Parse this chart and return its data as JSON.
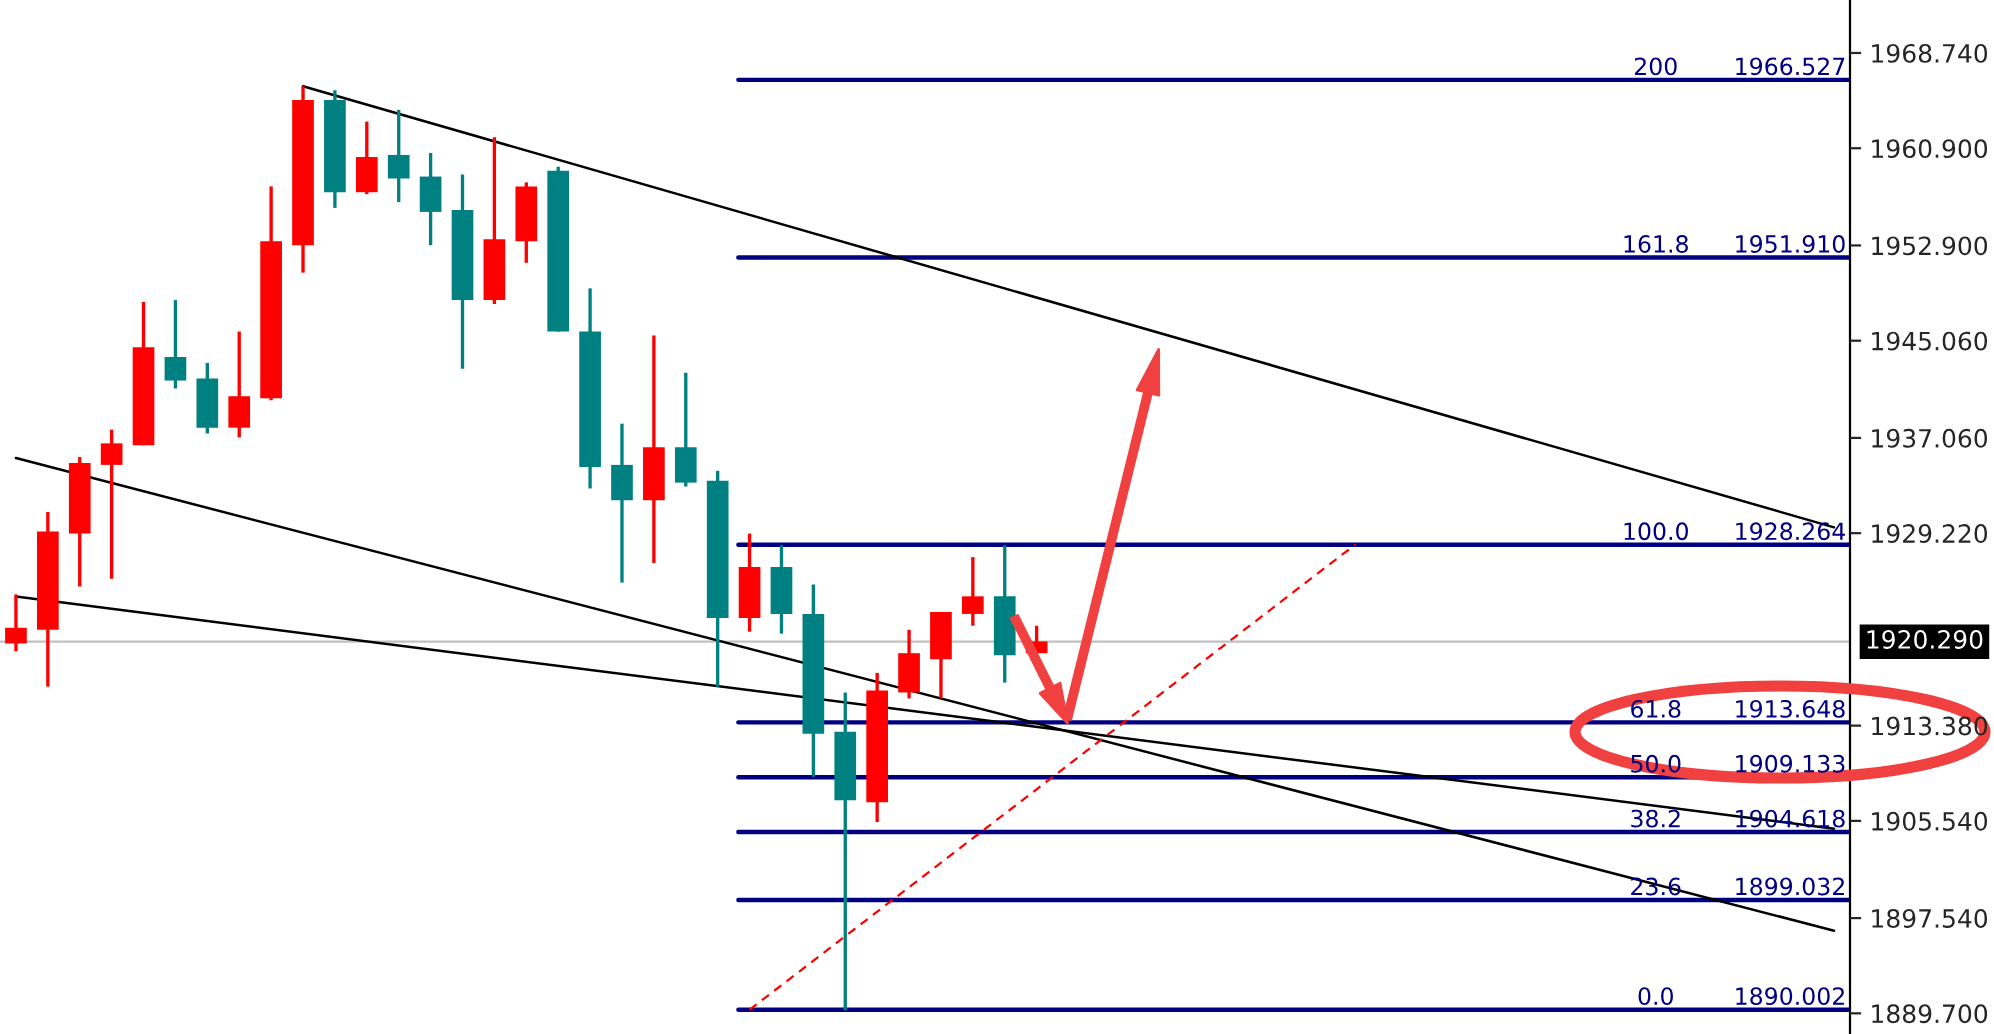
{
  "chart_data": {
    "type": "candlestick",
    "categories": [
      null,
      null,
      null,
      null,
      null,
      null,
      null,
      null,
      null,
      null,
      null,
      null,
      null,
      null,
      null,
      null,
      null,
      null,
      null,
      null,
      null,
      null,
      null,
      null,
      null,
      null,
      null,
      null,
      null,
      null,
      null,
      null,
      null,
      null,
      null,
      null,
      null,
      null,
      null,
      null,
      null,
      null,
      null,
      null,
      null,
      null,
      null,
      null,
      null,
      null,
      null,
      null,
      null,
      null,
      null,
      null,
      null,
      null
    ],
    "ohlc": [
      [
        1920.14,
        1924.18,
        1919.5,
        1921.43
      ],
      [
        1921.27,
        1930.96,
        1916.59,
        1929.35
      ],
      [
        1929.19,
        1935.48,
        1924.83,
        1935.0
      ],
      [
        1934.84,
        1937.74,
        1925.47,
        1936.61
      ],
      [
        1936.45,
        1948.24,
        1936.45,
        1944.52
      ],
      [
        1943.72,
        1948.4,
        1941.13,
        1941.78
      ],
      [
        1941.94,
        1943.23,
        1937.42,
        1937.9
      ],
      [
        1937.9,
        1945.81,
        1937.1,
        1940.49
      ],
      [
        1940.33,
        1957.76,
        1940.16,
        1953.24
      ],
      [
        1952.92,
        1966.0,
        1950.66,
        1964.87
      ],
      [
        1964.87,
        1965.67,
        1955.99,
        1957.28
      ],
      [
        1957.28,
        1963.09,
        1957.12,
        1960.18
      ],
      [
        1960.35,
        1964.06,
        1956.47,
        1958.41
      ],
      [
        1958.57,
        1960.51,
        1952.92,
        1955.66
      ],
      [
        1955.82,
        1958.73,
        1942.75,
        1948.4
      ],
      [
        1948.4,
        1961.8,
        1948.08,
        1953.4
      ],
      [
        1953.24,
        1958.09,
        1951.47,
        1957.76
      ],
      [
        1959.05,
        1959.38,
        1945.81,
        1945.81
      ],
      [
        1945.81,
        1949.37,
        1932.9,
        1934.67
      ],
      [
        1934.84,
        1938.23,
        1925.15,
        1931.93
      ],
      [
        1931.93,
        1945.49,
        1926.76,
        1936.29
      ],
      [
        1936.29,
        1942.42,
        1933.06,
        1933.38
      ],
      [
        1933.54,
        1934.35,
        1916.59,
        1922.24
      ],
      [
        1922.24,
        1929.19,
        1921.11,
        1926.44
      ],
      [
        1926.44,
        1928.22,
        1920.95,
        1922.57
      ],
      [
        1922.57,
        1924.99,
        1909.17,
        1912.72
      ],
      [
        1912.88,
        1916.11,
        1889.95,
        1907.23
      ],
      [
        1907.07,
        1917.72,
        1905.45,
        1916.27
      ],
      [
        1916.11,
        1921.27,
        1915.62,
        1919.34
      ],
      [
        1918.85,
        1922.73,
        1915.62,
        1922.73
      ],
      [
        1922.57,
        1927.25,
        1921.6,
        1924.02
      ],
      [
        1924.02,
        1928.22,
        1916.92,
        1919.18
      ],
      [
        1919.34,
        1921.6,
        1919.34,
        1920.31
      ],
      null,
      null,
      null,
      null,
      null,
      null,
      null,
      null,
      null,
      null,
      null,
      null,
      null,
      null,
      null,
      null,
      null,
      null,
      null,
      null,
      null,
      null,
      null,
      null,
      null
    ],
    "colors": [
      "#ff0000",
      "#ff0000",
      "#ff0000",
      "#ff0000",
      "#ff0000",
      "#008080",
      "#008080",
      "#ff0000",
      "#ff0000",
      "#ff0000",
      "#008080",
      "#ff0000",
      "#008080",
      "#008080",
      "#008080",
      "#ff0000",
      "#ff0000",
      "#008080",
      "#008080",
      "#008080",
      "#ff0000",
      "#008080",
      "#008080",
      "#ff0000",
      "#008080",
      "#008080",
      "#008080",
      "#ff0000",
      "#ff0000",
      "#ff0000",
      "#ff0000",
      "#008080",
      "#ff0000",
      null,
      null,
      null,
      null,
      null,
      null,
      null,
      null,
      null,
      null,
      null,
      null,
      null,
      null,
      null,
      null,
      null,
      null,
      null,
      null,
      null,
      null,
      null,
      null,
      null
    ],
    "series": [
      {
        "type": "line",
        "color": "#000000",
        "values": [
          null,
          null,
          null,
          null,
          null,
          null,
          null,
          null,
          null,
          1966.0,
          null,
          null,
          null,
          null,
          null,
          null,
          null,
          null,
          null,
          null,
          null,
          null,
          null,
          null,
          null,
          null,
          null,
          null,
          null,
          null,
          null,
          null,
          null,
          null,
          null,
          null,
          null,
          null,
          null,
          null,
          null,
          null,
          null,
          null,
          null,
          null,
          null,
          null,
          null,
          null,
          null,
          null,
          null,
          null,
          null,
          null,
          null,
          1929.7
        ]
      },
      {
        "type": "line",
        "color": "#000000",
        "values": [
          1935.4,
          null,
          null,
          null,
          null,
          null,
          null,
          null,
          null,
          null,
          null,
          null,
          null,
          null,
          null,
          null,
          null,
          null,
          null,
          null,
          null,
          null,
          null,
          null,
          null,
          null,
          null,
          null,
          null,
          null,
          null,
          null,
          null,
          null,
          null,
          null,
          null,
          null,
          null,
          null,
          null,
          null,
          null,
          null,
          null,
          null,
          null,
          null,
          null,
          null,
          null,
          null,
          null,
          null,
          null,
          null,
          null,
          1896.5
        ]
      },
      {
        "type": "line",
        "color": "#000000",
        "values": [
          1924.0,
          null,
          null,
          null,
          null,
          null,
          null,
          null,
          null,
          null,
          null,
          null,
          null,
          null,
          null,
          null,
          null,
          null,
          null,
          null,
          null,
          null,
          null,
          null,
          null,
          null,
          null,
          null,
          null,
          null,
          null,
          null,
          null,
          null,
          null,
          null,
          null,
          null,
          null,
          null,
          null,
          null,
          null,
          null,
          null,
          null,
          null,
          null,
          null,
          null,
          null,
          null,
          null,
          null,
          null,
          null,
          null,
          1904.9
        ]
      },
      {
        "type": "line",
        "color": "#ff0000",
        "line_style": "dashed",
        "values": [
          null,
          null,
          null,
          null,
          null,
          null,
          null,
          null,
          null,
          null,
          null,
          null,
          null,
          null,
          null,
          null,
          null,
          null,
          null,
          null,
          null,
          null,
          null,
          1890.0,
          null,
          null,
          null,
          null,
          null,
          null,
          null,
          null,
          null,
          null,
          null,
          null,
          null,
          null,
          null,
          null,
          null,
          null,
          1928.3,
          null,
          null,
          null,
          null,
          null,
          null,
          null,
          null,
          null,
          null,
          null,
          null,
          null,
          null,
          null
        ]
      }
    ],
    "ylim": [
      1888.0,
      1973.1
    ],
    "yticks": [
      {
        "value": 1968.74,
        "label": "1968.740"
      },
      {
        "value": 1960.9,
        "label": "1960.900"
      },
      {
        "value": 1952.9,
        "label": "1952.900"
      },
      {
        "value": 1945.06,
        "label": "1945.060"
      },
      {
        "value": 1937.06,
        "label": "1937.060"
      },
      {
        "value": 1929.22,
        "label": "1929.220"
      },
      {
        "value": 1913.38,
        "label": "1913.380"
      },
      {
        "value": 1905.54,
        "label": "1905.540"
      },
      {
        "value": 1897.54,
        "label": "1897.540"
      },
      {
        "value": 1889.7,
        "label": "1889.700"
      }
    ],
    "ref_lines": [
      {
        "axis": "y",
        "value": 1966.527,
        "label": "200 1966.527",
        "color": "#000080"
      },
      {
        "axis": "y",
        "value": 1951.91,
        "label": "161.8 1951.910",
        "color": "#000080"
      },
      {
        "axis": "y",
        "value": 1928.264,
        "label": "100.0 1928.264",
        "color": "#000080"
      },
      {
        "axis": "y",
        "value": 1913.648,
        "label": "61.8 1913.648",
        "color": "#000080"
      },
      {
        "axis": "y",
        "value": 1909.133,
        "label": "50.0 1909.133",
        "color": "#000080"
      },
      {
        "axis": "y",
        "value": 1904.618,
        "label": "38.2 1904.618",
        "color": "#000080"
      },
      {
        "axis": "y",
        "value": 1899.032,
        "label": "23.6 1899.032",
        "color": "#000080"
      },
      {
        "axis": "y",
        "value": 1890.002,
        "label": "0.0 1890.002",
        "color": "#000080"
      },
      {
        "axis": "y",
        "value": 1920.29,
        "label": "1920.290",
        "color": "#c0c0c0"
      }
    ],
    "grid": false,
    "legend": false
  }
}
